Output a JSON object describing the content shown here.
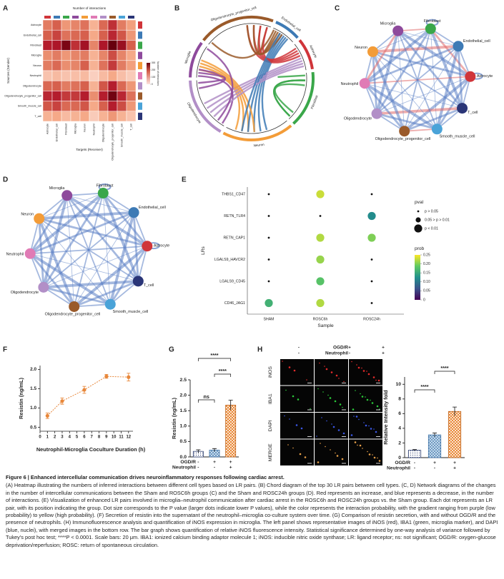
{
  "panels": {
    "A": {
      "label": "A",
      "title": "Number of interactions",
      "ylabel": "Sources (Sender)",
      "xlabel": "Targets (Receiver)",
      "legend_title": "Number of interactions",
      "cell_types": [
        "Astrocyte",
        "Endothelial_cell",
        "Fibroblast",
        "Microglia",
        "Neuron",
        "Neutrophil",
        "Oligodendrocyte",
        "Oligodendrocyte_progenitor_cell",
        "Smooth_muscle_cell",
        "T_cell"
      ],
      "colors": [
        "#d0353a",
        "#3d7ab5",
        "#3aa74a",
        "#8e4a9c",
        "#f39c38",
        "#e07bb5",
        "#b28fc7",
        "#9a5a2a",
        "#4aa3d8",
        "#2a3577"
      ],
      "matrix": [
        [
          120,
          150,
          90,
          110,
          130,
          60,
          140,
          200,
          120,
          80
        ],
        [
          150,
          180,
          130,
          140,
          150,
          70,
          150,
          210,
          160,
          90
        ],
        [
          220,
          230,
          280,
          200,
          240,
          110,
          230,
          300,
          250,
          150
        ],
        [
          100,
          120,
          90,
          110,
          120,
          60,
          110,
          170,
          110,
          70
        ],
        [
          120,
          140,
          100,
          110,
          150,
          60,
          130,
          190,
          120,
          80
        ],
        [
          40,
          50,
          40,
          45,
          50,
          25,
          50,
          70,
          45,
          30
        ],
        [
          140,
          150,
          120,
          130,
          150,
          60,
          160,
          220,
          140,
          90
        ],
        [
          210,
          220,
          190,
          190,
          220,
          100,
          220,
          290,
          210,
          130
        ],
        [
          160,
          180,
          140,
          140,
          160,
          70,
          150,
          220,
          170,
          90
        ],
        [
          60,
          70,
          50,
          60,
          70,
          30,
          60,
          90,
          60,
          40
        ]
      ],
      "clim": [
        0,
        300
      ],
      "cticks": [
        0,
        100,
        200,
        300
      ]
    },
    "B": {
      "label": "B",
      "sectors": [
        "Oligodendrocyte_progenitor_cell",
        "Endothelial_cell",
        "Astrocyte",
        "Fibroblast",
        "Neuron",
        "Oligodendrocyte",
        "Microglia"
      ],
      "colors": [
        "#9a5a2a",
        "#3d7ab5",
        "#d0353a",
        "#3aa74a",
        "#f39c38",
        "#b28fc7",
        "#8e4a9c"
      ]
    },
    "C": {
      "label": "C",
      "nodes": [
        "Fibroblast",
        "Endothelial_cell",
        "Astrocyte",
        "T_cell",
        "Smooth_muscle_cell",
        "Oligodendrocyte_progenitor_cell",
        "Oligodendrocyte",
        "Neutrophil",
        "Neuron",
        "Microglia"
      ],
      "colors": [
        "#3aa74a",
        "#3d7ab5",
        "#d0353a",
        "#2a3577",
        "#4aa3d8",
        "#9a5a2a",
        "#b28fc7",
        "#e07bb5",
        "#f39c38",
        "#8e4a9c"
      ]
    },
    "D": {
      "label": "D",
      "nodes": [
        "Fibroblast",
        "Endothelial_cell",
        "Astrocyte",
        "T_cell",
        "Smooth_muscle_cell",
        "Oligodendrocyte_progenitor_cell",
        "Oligodendrocyte",
        "Neutrophil",
        "Neuron",
        "Microglia"
      ],
      "colors": [
        "#3aa74a",
        "#3d7ab5",
        "#d0353a",
        "#2a3577",
        "#4aa3d8",
        "#9a5a2a",
        "#b28fc7",
        "#e07bb5",
        "#f39c38",
        "#8e4a9c"
      ]
    },
    "E": {
      "label": "E",
      "ylabel": "LRs",
      "xlabel": "Sample",
      "lrs": [
        "THBS1_CD47",
        "RETN_TLR4",
        "RETN_CAP1",
        "LGALS9_HAVCR2",
        "LGALS9_CD45",
        "CD46_JAG1"
      ],
      "samples": [
        "SHAM",
        "ROSC6h",
        "ROSC24h"
      ],
      "prob": [
        [
          null,
          0.23,
          null
        ],
        [
          null,
          null,
          0.12
        ],
        [
          null,
          0.22,
          0.2
        ],
        [
          null,
          0.21,
          null
        ],
        [
          null,
          0.18,
          null
        ],
        [
          0.16,
          0.22,
          null
        ]
      ],
      "pval_group": [
        [
          0,
          2,
          0
        ],
        [
          0,
          0,
          2
        ],
        [
          0,
          2,
          2
        ],
        [
          0,
          2,
          0
        ],
        [
          0,
          2,
          0
        ],
        [
          2,
          2,
          0
        ]
      ],
      "pval_title": "pval",
      "pval_labels": [
        "p > 0.05",
        "0.05 > p > 0.01",
        "p < 0.01"
      ],
      "prob_title": "prob",
      "prob_lim": [
        0,
        0.25
      ],
      "prob_ticks": [
        0,
        0.05,
        {
          "value": 0.1,
          "label": "0.10"
        },
        0.15,
        {
          "value": 0.2,
          "label": "0.20"
        },
        0.25
      ]
    },
    "F": {
      "label": "F",
      "ylabel": "Resistin (ng/mL)",
      "xlabel": "Neutrophil-Microglia Coculture Duration (h)",
      "x": [
        1,
        3,
        6,
        9,
        12
      ],
      "values": [
        0.8,
        1.18,
        1.47,
        1.82,
        1.8
      ],
      "errors": [
        0.07,
        0.08,
        0.09,
        0.05,
        0.1
      ],
      "color": "#e8873a",
      "xlim": [
        0,
        12.6
      ],
      "ylim": [
        0.4,
        2.1
      ],
      "xticks": [
        0,
        1,
        2,
        3,
        4,
        5,
        6,
        7,
        8,
        9,
        10,
        11,
        12
      ],
      "yticks": [
        0.5,
        {
          "value": 1,
          "label": "1.0"
        },
        1.5,
        {
          "value": 2,
          "label": "2.0"
        }
      ]
    },
    "G": {
      "label": "G",
      "ylabel": "Resistin (ng/mL)",
      "values": [
        0.18,
        0.22,
        1.68
      ],
      "errors": [
        0.05,
        0.05,
        0.16
      ],
      "ylim": [
        0,
        2.5
      ],
      "yticks": [
        {
          "value": 0,
          "label": "0.0"
        },
        0.5,
        {
          "value": 1,
          "label": "1.0"
        },
        1.5,
        {
          "value": 2,
          "label": "2.0"
        },
        2.5
      ],
      "significance": [
        "ns",
        "****",
        "****"
      ],
      "rows": [
        {
          "label": "OGD/R",
          "values": [
            "-",
            "+",
            "+"
          ]
        },
        {
          "label": "Neutrophil",
          "values": [
            "-",
            "-",
            "+"
          ]
        }
      ]
    },
    "H": {
      "label": "H",
      "image_rows": [
        "iNOS",
        "IBA1",
        "DAPI",
        "MERGE"
      ],
      "header_rows": [
        {
          "label": "OGD/R",
          "values": [
            "-",
            "+",
            "+"
          ]
        },
        {
          "label": "Neutrophil",
          "values": [
            "-",
            "-",
            "+"
          ]
        }
      ],
      "ylabel": "Relative Intensity fold",
      "values": [
        1.0,
        3.1,
        6.3
      ],
      "errors": [
        0.1,
        0.25,
        0.6
      ],
      "ylim": [
        0,
        11
      ],
      "yticks": [
        0,
        2,
        4,
        6,
        8,
        10
      ],
      "significance": [
        "****",
        "****"
      ],
      "rows": [
        {
          "label": "OGD/R",
          "values": [
            "-",
            "+",
            "+"
          ]
        },
        {
          "label": "Neutrophil",
          "values": [
            "-",
            "-",
            "+"
          ]
        }
      ]
    }
  },
  "caption": {
    "title": "Figure 6 | Enhanced intercellular communication drives neuroinflammatory responses following cardiac arrest.",
    "body": "(A) Heatmap illustrating the numbers of inferred interactions between different cell types based on LR pairs. (B) Chord diagram of the top 30 LR pairs between cell types. (C, D) Network diagrams of the changes in the number of intercellular communications between the Sham and ROSC6h groups (C) and the Sham and ROSC24h groups (D). Red represents an increase, and blue represents a decrease, in the number of interactions. (E) Visualization of enhanced LR pairs involved in microglia–neutrophil communication after cardiac arrest in the ROSC6h and ROSC24h groups vs. the Sham group. Each dot represents an LR pair, with its position indicating the group. Dot size corresponds to the P value (larger dots indicate lower P values), while the color represents the interaction probability, with the gradient ranging from purple (low probability) to yellow (high probability). (F) Secretion of resistin into the supernatant of the neutrophil–microglia co-culture system over time. (G) Comparison of resistin secretion, with and without OGD/R and the presence of neutrophils. (H) Immunofluorescence analysis and quantification of iNOS expression in microglia. The left panel shows representative images of iNOS (red), IBA1 (green, microglia marker), and DAPI (blue, nuclei), with merged images in the bottom row. The bar graph shows quantification of relative iNOS fluorescence intensity. Statistical significance determined by one-way analysis of variance followed by Tukey's post hoc test; ****P < 0.0001. Scale bars: 20 μm. IBA1: ionized calcium binding adaptor molecule 1; iNOS: inducible nitric oxide synthase; LR: ligand receptor; ns: not significant; OGD/R: oxygen-glucose deprivation/reperfusion; ROSC: return of spontaneous circulation."
  }
}
